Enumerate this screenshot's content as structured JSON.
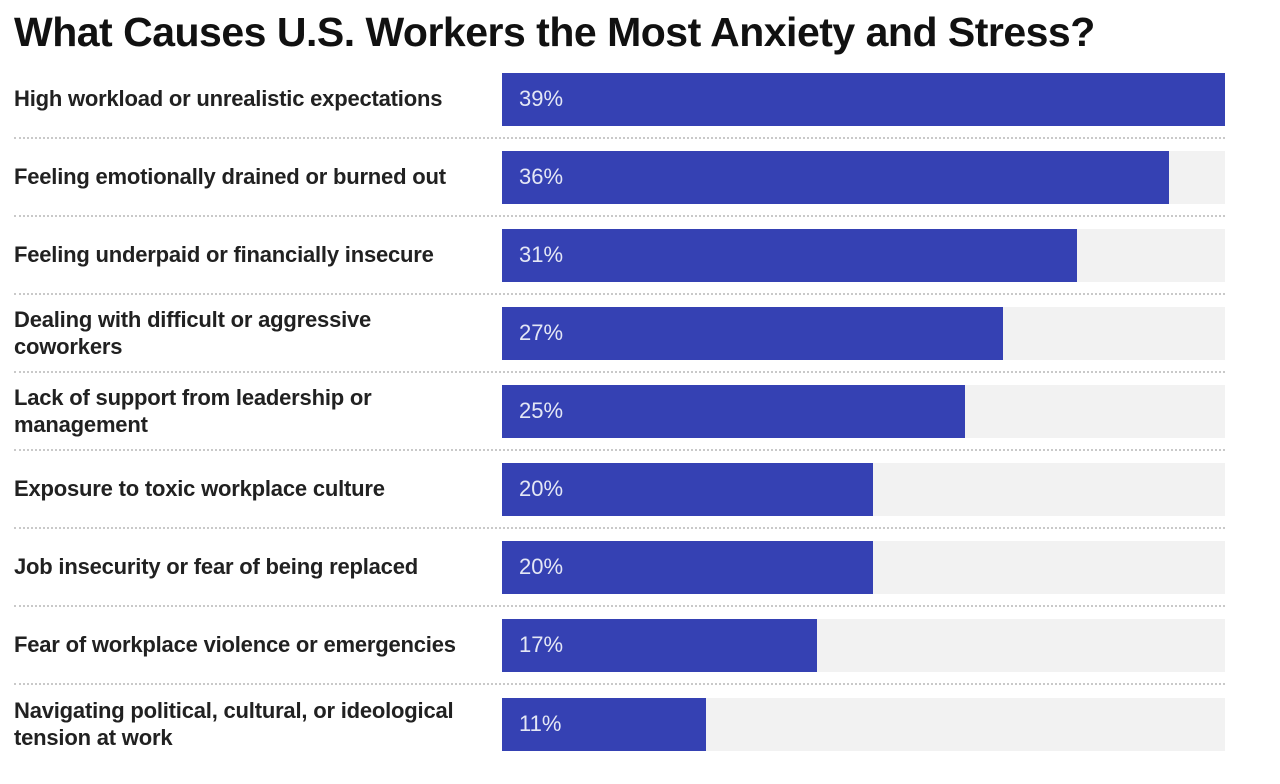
{
  "title": "What Causes U.S. Workers the Most Anxiety and Stress?",
  "chart_data": {
    "type": "bar",
    "orientation": "horizontal",
    "title": "What Causes U.S. Workers the Most Anxiety and Stress?",
    "categories": [
      "High workload or unrealistic expectations",
      "Feeling emotionally drained or burned out",
      "Feeling underpaid or financially insecure",
      "Dealing with difficult or aggressive coworkers",
      "Lack of support from leadership or management",
      "Exposure to toxic workplace culture",
      "Job insecurity or fear of being replaced",
      "Fear of workplace violence or emergencies",
      "Navigating political, cultural, or ideological tension at work"
    ],
    "values": [
      39,
      36,
      31,
      27,
      25,
      20,
      20,
      17,
      11
    ],
    "value_labels": [
      "39%",
      "36%",
      "31%",
      "27%",
      "25%",
      "20%",
      "20%",
      "17%",
      "11%"
    ],
    "value_suffix": "%",
    "axis_max": 39,
    "data_labels": "inside-start",
    "grid": false,
    "legend": "none",
    "separator_style": "dotted",
    "colors": {
      "bar": "#3541b3",
      "track": "#f2f2f2",
      "title_text": "#111111",
      "label_text": "#212121",
      "value_text": "#e4e7f5",
      "separator": "#c9c9c9",
      "background": "#ffffff"
    }
  }
}
